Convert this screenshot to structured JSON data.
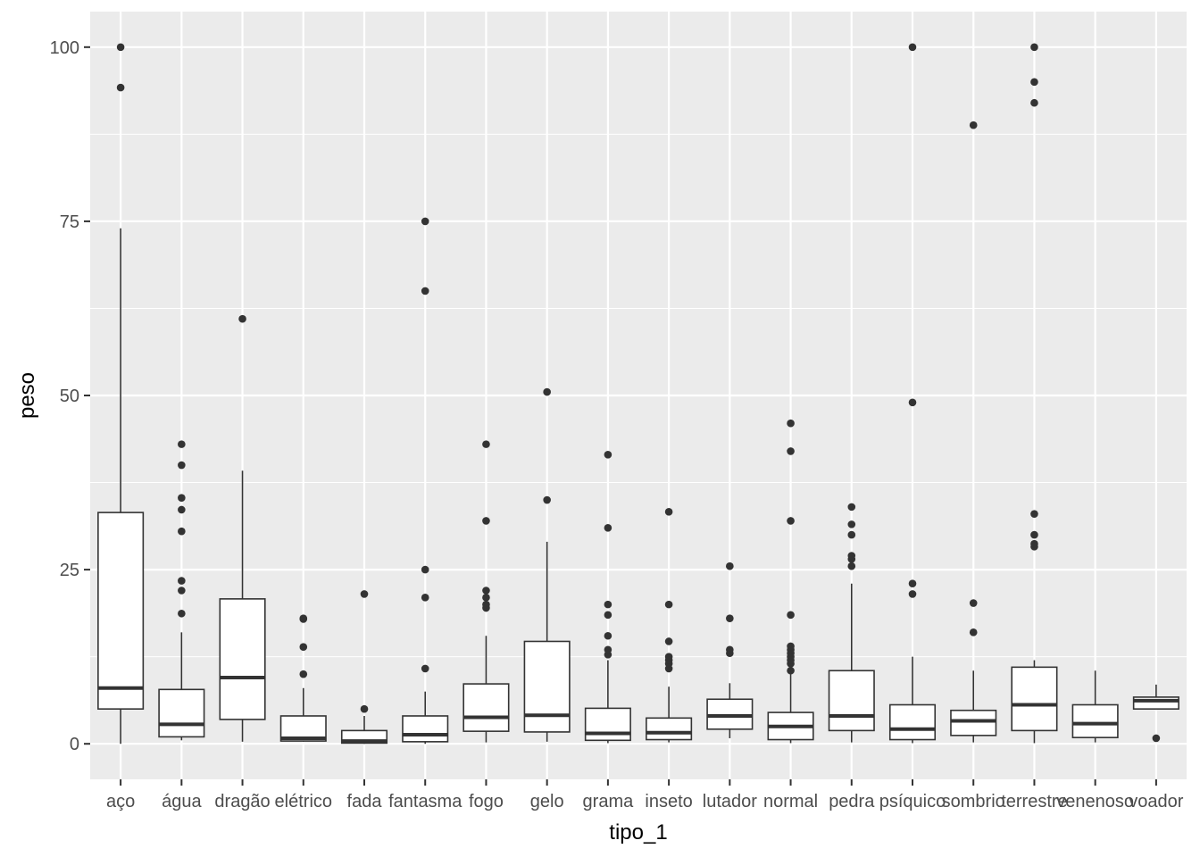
{
  "chart_data": {
    "type": "boxplot",
    "title": "",
    "xlabel": "tipo_1",
    "ylabel": "peso",
    "ylim": [
      -5.1,
      105.1
    ],
    "yticks": [
      0,
      25,
      50,
      75,
      100
    ],
    "ytick_labels": [
      "0",
      "25",
      "50",
      "75",
      "100"
    ],
    "grid": true,
    "colors": {
      "panel": "#ebebeb",
      "grid_major": "#ffffff",
      "box_fill": "#ffffff",
      "box_line": "#333333",
      "outlier": "#333333",
      "tick_text": "#4d4d4d"
    },
    "categories": [
      "aço",
      "água",
      "dragão",
      "elétrico",
      "fada",
      "fantasma",
      "fogo",
      "gelo",
      "grama",
      "inseto",
      "lutador",
      "normal",
      "pedra",
      "psíquico",
      "sombrio",
      "terrestre",
      "venenoso",
      "voador"
    ],
    "boxes": [
      {
        "category": "aço",
        "lower_whisker": 0,
        "q1": 5,
        "median": 8,
        "q3": 33.2,
        "upper_whisker": 74,
        "outliers": [
          94.2,
          100
        ]
      },
      {
        "category": "água",
        "lower_whisker": 0.5,
        "q1": 1,
        "median": 2.8,
        "q3": 7.8,
        "upper_whisker": 16,
        "outliers": [
          18.7,
          22,
          23.4,
          30.5,
          33.6,
          35.3,
          40,
          43
        ]
      },
      {
        "category": "dragão",
        "lower_whisker": 0.3,
        "q1": 3.5,
        "median": 9.5,
        "q3": 20.8,
        "upper_whisker": 39.2,
        "outliers": [
          61
        ]
      },
      {
        "category": "elétrico",
        "lower_whisker": 0.3,
        "q1": 0.4,
        "median": 0.8,
        "q3": 4,
        "upper_whisker": 8,
        "outliers": [
          10,
          13.9,
          17.9,
          18
        ]
      },
      {
        "category": "fada",
        "lower_whisker": 0,
        "q1": 0.1,
        "median": 0.4,
        "q3": 1.9,
        "upper_whisker": 4,
        "outliers": [
          5,
          21.5
        ]
      },
      {
        "category": "fantasma",
        "lower_whisker": 0,
        "q1": 0.3,
        "median": 1.3,
        "q3": 4,
        "upper_whisker": 7.5,
        "outliers": [
          10.8,
          21,
          25,
          65,
          75
        ]
      },
      {
        "category": "fogo",
        "lower_whisker": 0.2,
        "q1": 1.8,
        "median": 3.8,
        "q3": 8.6,
        "upper_whisker": 15.5,
        "outliers": [
          19.5,
          20,
          21,
          22,
          32,
          43
        ]
      },
      {
        "category": "gelo",
        "lower_whisker": 0.3,
        "q1": 1.7,
        "median": 4.1,
        "q3": 14.7,
        "upper_whisker": 29,
        "outliers": [
          35,
          50.5
        ]
      },
      {
        "category": "grama",
        "lower_whisker": 0.1,
        "q1": 0.5,
        "median": 1.5,
        "q3": 5.1,
        "upper_whisker": 12,
        "outliers": [
          12.8,
          13.5,
          15.5,
          18.5,
          20,
          31,
          41.5
        ]
      },
      {
        "category": "inseto",
        "lower_whisker": 0.2,
        "q1": 0.6,
        "median": 1.6,
        "q3": 3.7,
        "upper_whisker": 8.2,
        "outliers": [
          10.8,
          11.5,
          12,
          12.5,
          14.7,
          20,
          33.3
        ]
      },
      {
        "category": "lutador",
        "lower_whisker": 0.8,
        "q1": 2.1,
        "median": 4,
        "q3": 6.4,
        "upper_whisker": 8.7,
        "outliers": [
          13,
          13.5,
          18,
          25.5
        ]
      },
      {
        "category": "normal",
        "lower_whisker": 0.1,
        "q1": 0.6,
        "median": 2.5,
        "q3": 4.5,
        "upper_whisker": 10,
        "outliers": [
          10.5,
          11.5,
          12,
          12.5,
          13,
          13.5,
          14,
          18.5,
          32,
          42,
          46
        ]
      },
      {
        "category": "pedra",
        "lower_whisker": 0.2,
        "q1": 1.9,
        "median": 4,
        "q3": 10.5,
        "upper_whisker": 23,
        "outliers": [
          25.5,
          26.5,
          27,
          30,
          31.5,
          34
        ]
      },
      {
        "category": "psíquico",
        "lower_whisker": 0.1,
        "q1": 0.6,
        "median": 2.1,
        "q3": 5.6,
        "upper_whisker": 12.5,
        "outliers": [
          21.5,
          23,
          49,
          100
        ]
      },
      {
        "category": "sombrio",
        "lower_whisker": 0.2,
        "q1": 1.2,
        "median": 3.3,
        "q3": 4.8,
        "upper_whisker": 10.5,
        "outliers": [
          16,
          20.2,
          88.8
        ]
      },
      {
        "category": "terrestre",
        "lower_whisker": 0.1,
        "q1": 1.9,
        "median": 5.6,
        "q3": 11,
        "upper_whisker": 12,
        "outliers": [
          28.3,
          28.7,
          30,
          33,
          92,
          95,
          100
        ]
      },
      {
        "category": "venenoso",
        "lower_whisker": 0.2,
        "q1": 0.9,
        "median": 2.9,
        "q3": 5.6,
        "upper_whisker": 10.5,
        "outliers": []
      },
      {
        "category": "voador",
        "lower_whisker": 5,
        "q1": 5,
        "median": 6.2,
        "q3": 6.7,
        "upper_whisker": 8.5,
        "outliers": [
          0.8
        ]
      }
    ]
  }
}
